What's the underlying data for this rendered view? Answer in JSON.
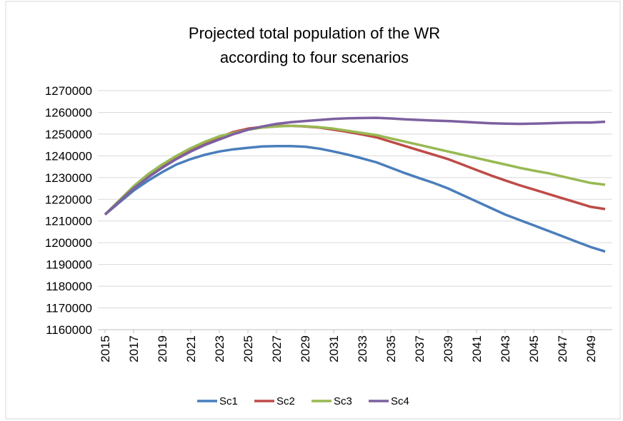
{
  "chart_data": {
    "type": "line",
    "title": "Projected total population of the WR according to four scenarios",
    "x": [
      2015,
      2016,
      2017,
      2018,
      2019,
      2020,
      2021,
      2022,
      2023,
      2024,
      2025,
      2026,
      2027,
      2028,
      2029,
      2030,
      2031,
      2032,
      2033,
      2034,
      2035,
      2036,
      2037,
      2038,
      2039,
      2040,
      2041,
      2042,
      2043,
      2044,
      2045,
      2046,
      2047,
      2048,
      2049,
      2050
    ],
    "xlim": [
      2014.5,
      2050.5
    ],
    "xticks": [
      2015,
      2017,
      2019,
      2021,
      2023,
      2025,
      2027,
      2029,
      2031,
      2033,
      2035,
      2037,
      2039,
      2041,
      2043,
      2045,
      2047,
      2049
    ],
    "ylim": [
      1160000,
      1270000
    ],
    "yticks": [
      1160000,
      1170000,
      1180000,
      1190000,
      1200000,
      1210000,
      1220000,
      1230000,
      1240000,
      1250000,
      1260000,
      1270000
    ],
    "grid": true,
    "legend": "bottom",
    "series": [
      {
        "name": "Sc1",
        "color": "#4a7ebb",
        "values": [
          1213000,
          1218500,
          1224000,
          1228500,
          1232500,
          1236000,
          1238500,
          1240500,
          1242000,
          1243000,
          1243700,
          1244300,
          1244500,
          1244500,
          1244200,
          1243300,
          1242000,
          1240500,
          1238800,
          1237000,
          1234500,
          1232000,
          1229700,
          1227500,
          1225000,
          1222000,
          1219000,
          1216000,
          1213000,
          1210500,
          1208000,
          1205500,
          1203000,
          1200500,
          1198000,
          1196000
        ]
      },
      {
        "name": "Sc2",
        "color": "#be4b48",
        "values": [
          1213000,
          1219000,
          1225000,
          1230500,
          1235000,
          1239000,
          1242500,
          1245500,
          1248500,
          1251000,
          1252500,
          1253300,
          1253700,
          1253800,
          1253500,
          1253000,
          1252000,
          1251000,
          1249800,
          1248500,
          1246500,
          1244500,
          1242500,
          1240500,
          1238500,
          1236000,
          1233500,
          1231000,
          1228700,
          1226500,
          1224500,
          1222500,
          1220500,
          1218500,
          1216500,
          1215500
        ]
      },
      {
        "name": "Sc3",
        "color": "#98b954",
        "values": [
          1213000,
          1219500,
          1226000,
          1231500,
          1236000,
          1240000,
          1243500,
          1246500,
          1249000,
          1250500,
          1252000,
          1253000,
          1253500,
          1253800,
          1253600,
          1253200,
          1252500,
          1251500,
          1250500,
          1249500,
          1248000,
          1246500,
          1245000,
          1243500,
          1242000,
          1240500,
          1239000,
          1237500,
          1236000,
          1234500,
          1233200,
          1232000,
          1230500,
          1229000,
          1227500,
          1226700
        ]
      },
      {
        "name": "Sc4",
        "color": "#7d60a0",
        "values": [
          1213000,
          1219000,
          1225000,
          1230000,
          1234500,
          1238500,
          1242000,
          1245000,
          1247500,
          1250000,
          1252000,
          1253500,
          1254700,
          1255500,
          1256000,
          1256500,
          1257000,
          1257300,
          1257400,
          1257500,
          1257200,
          1256800,
          1256500,
          1256200,
          1256000,
          1255700,
          1255300,
          1255000,
          1254800,
          1254700,
          1254800,
          1255000,
          1255200,
          1255300,
          1255300,
          1255700
        ]
      }
    ]
  }
}
